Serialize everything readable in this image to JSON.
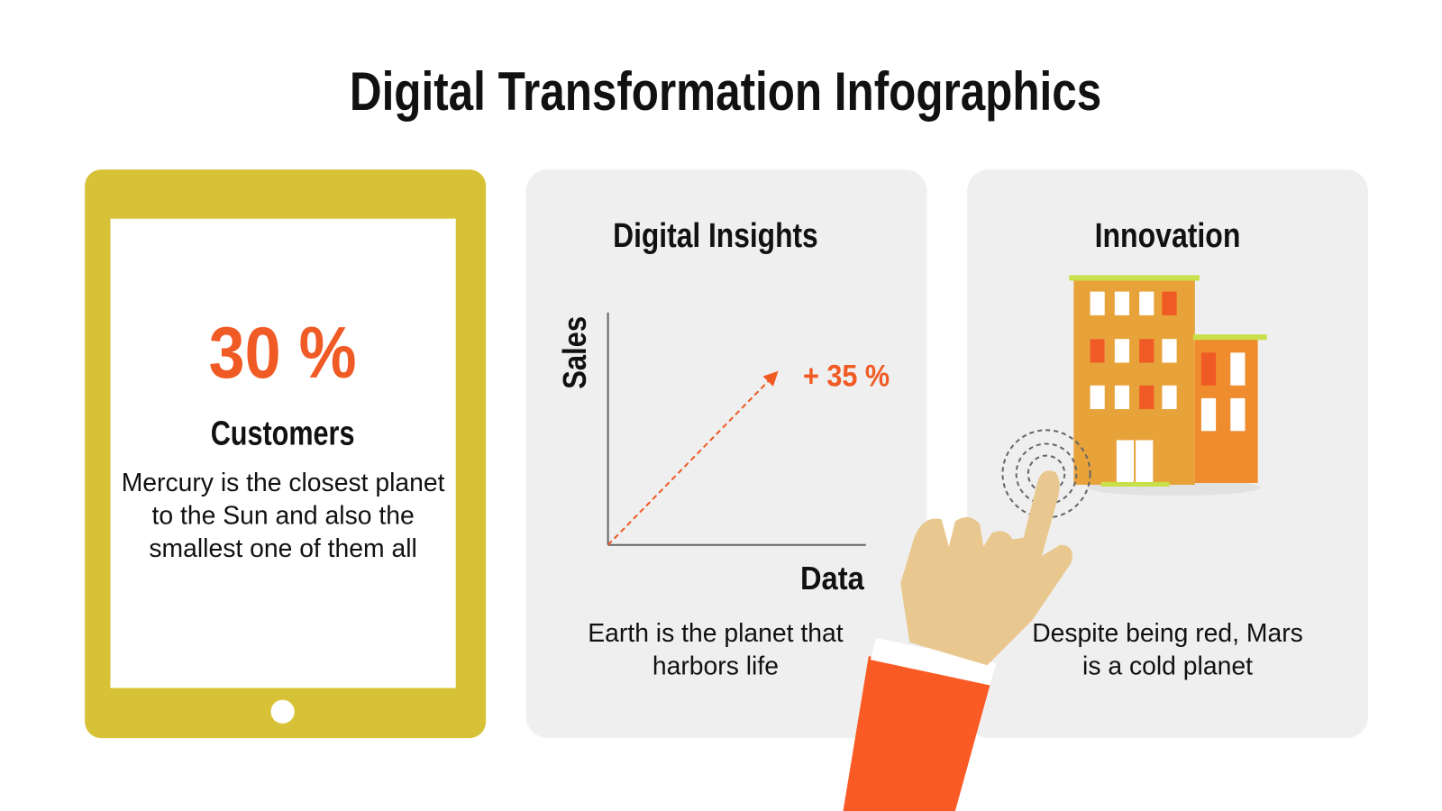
{
  "title": "Digital Transformation Infographics",
  "cards": [
    {
      "stat": "30 %",
      "heading": "Customers",
      "text": "Mercury is the closest planet to the Sun and also the smallest one of them all"
    },
    {
      "heading": "Digital Insights",
      "y_label": "Sales",
      "x_label": "Data",
      "annotation": "+ 35 %",
      "text": "Earth is the planet that harbors life"
    },
    {
      "heading": "Innovation",
      "text": "Despite being red, Mars is a cold planet"
    }
  ]
}
